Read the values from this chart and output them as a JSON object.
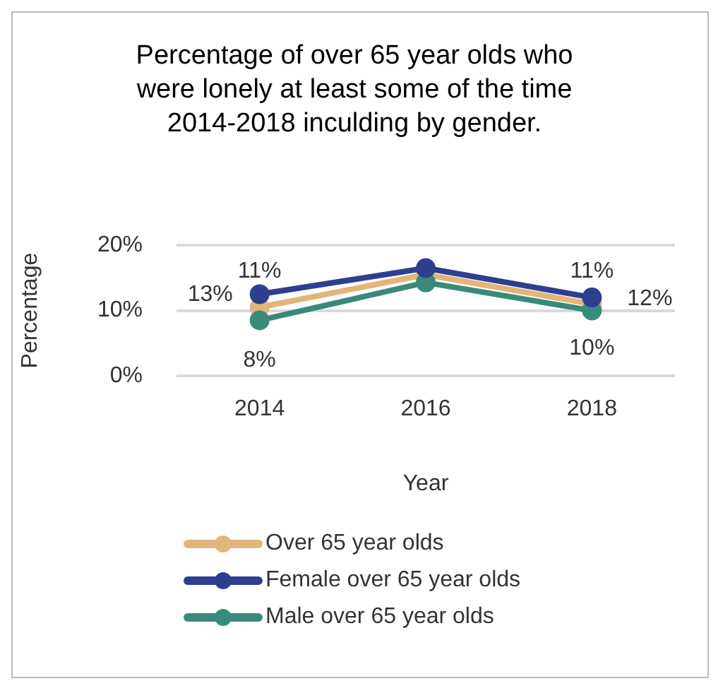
{
  "chart_data": {
    "type": "line",
    "title": "Percentage of over 65 year olds who were lonely at least some of the time 2014-2018 inculding by gender.",
    "xlabel": "Year",
    "ylabel": "Percentage",
    "categories": [
      "2014",
      "2016",
      "2018"
    ],
    "series": [
      {
        "name": "Over 65 year olds",
        "color": "#e2b57a",
        "values": [
          10.5,
          15.5,
          11
        ]
      },
      {
        "name": "Female over 65 year olds",
        "color": "#2e3f8f",
        "values": [
          12.5,
          16.5,
          12
        ]
      },
      {
        "name": "Male over 65 year olds",
        "color": "#3a8a7b",
        "values": [
          8.5,
          14.3,
          10
        ]
      }
    ],
    "ylim": [
      0,
      20
    ],
    "yticks": [
      {
        "value": 0,
        "label": "0%"
      },
      {
        "value": 10,
        "label": "10%"
      },
      {
        "value": 20,
        "label": "20%"
      }
    ],
    "grid": "y",
    "legend": "bottom",
    "marker": "circle",
    "line_style": "solid",
    "annotations": [
      "11%",
      "13%",
      "8%",
      "11%",
      "12%",
      "10%"
    ]
  }
}
